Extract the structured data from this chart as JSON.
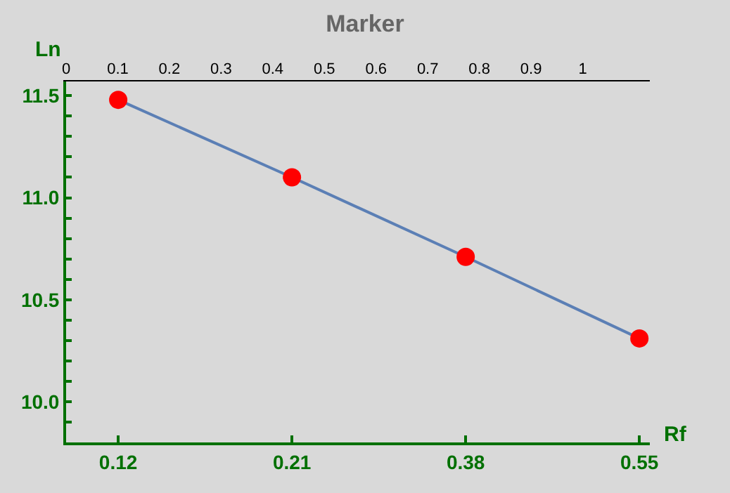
{
  "chart_data": {
    "type": "line",
    "title": "Marker",
    "xlabel": "Rf",
    "ylabel": "Ln",
    "categories": [
      "0.12",
      "0.21",
      "0.38",
      "0.55"
    ],
    "series": [
      {
        "color": "#5b7fb5",
        "colors": [
          "#ff0000",
          "#ff0000",
          "#ff0000",
          "#ff0000"
        ],
        "values": [
          11.48,
          11.1,
          10.71,
          10.31
        ]
      }
    ],
    "marker": "circle",
    "line_style": "solid",
    "grid": false,
    "ylim": [
      9.8,
      11.57
    ],
    "yticks": [
      {
        "value": 9.9,
        "label": null
      },
      {
        "value": 10.0,
        "label": "10.0"
      },
      {
        "value": 10.1,
        "label": null
      },
      {
        "value": 10.2,
        "label": null
      },
      {
        "value": 10.3,
        "label": null
      },
      {
        "value": 10.4,
        "label": null
      },
      {
        "value": 10.5,
        "label": "10.5"
      },
      {
        "value": 10.6,
        "label": null
      },
      {
        "value": 10.7,
        "label": null
      },
      {
        "value": 10.8,
        "label": null
      },
      {
        "value": 10.9,
        "label": null
      },
      {
        "value": 11.0,
        "label": "11.0"
      },
      {
        "value": 11.1,
        "label": null
      },
      {
        "value": 11.2,
        "label": null
      },
      {
        "value": 11.3,
        "label": null
      },
      {
        "value": 11.4,
        "label": null
      },
      {
        "value": 11.5,
        "label": "11.5"
      }
    ],
    "x2lim": [
      0,
      1.13
    ],
    "x2ticks": [
      0,
      0.1,
      0.2,
      0.3,
      0.4,
      0.5,
      0.6,
      0.7,
      0.8,
      0.9,
      1
    ]
  }
}
